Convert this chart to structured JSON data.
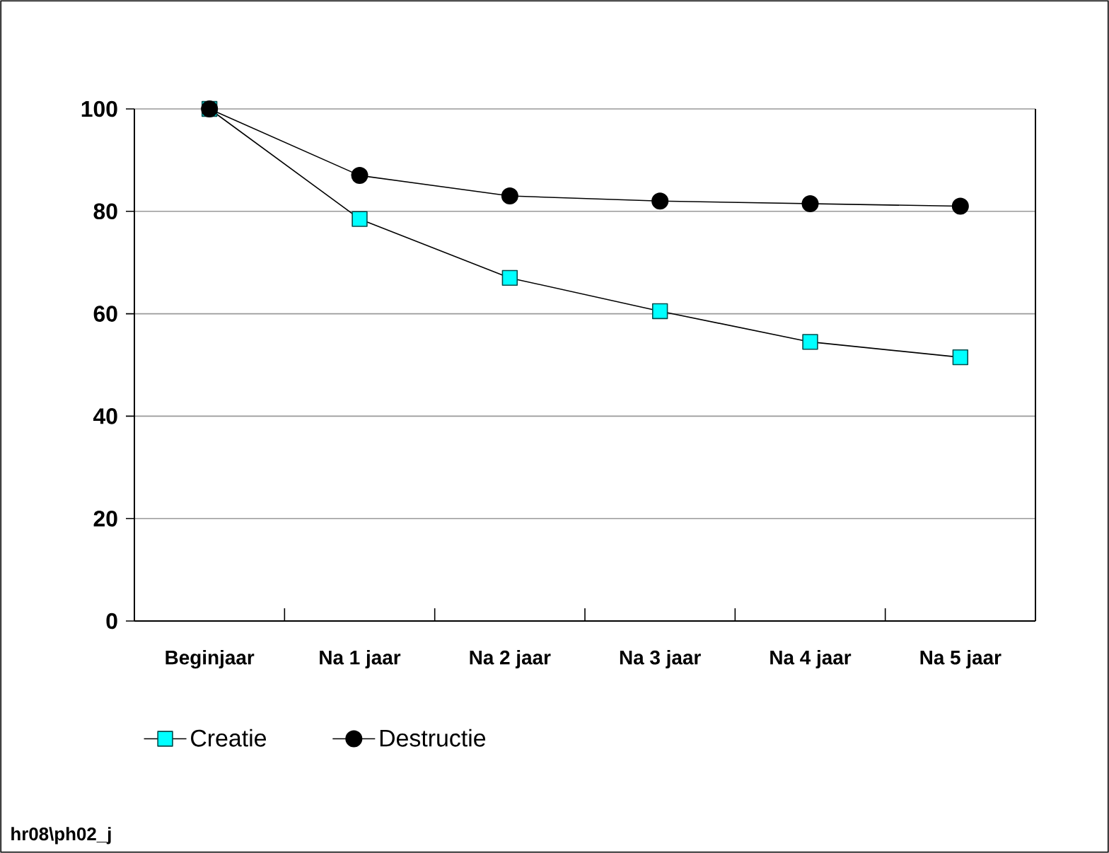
{
  "chart_data": {
    "type": "line",
    "categories": [
      "Beginjaar",
      "Na 1 jaar",
      "Na 2 jaar",
      "Na 3 jaar",
      "Na 4 jaar",
      "Na 5 jaar"
    ],
    "series": [
      {
        "name": "Creatie",
        "color": "#00ffff",
        "marker": "square",
        "values": [
          100,
          78.5,
          67,
          60.5,
          54.5,
          51.5
        ]
      },
      {
        "name": "Destructie",
        "color": "#000000",
        "marker": "circle",
        "values": [
          100,
          87,
          83,
          82,
          81.5,
          81
        ]
      }
    ],
    "ylim": [
      0,
      100
    ],
    "yticks": [
      0,
      20,
      40,
      60,
      80,
      100
    ],
    "grid": "y",
    "legend": "bottom left",
    "line_style": "solid",
    "annotations": [
      "hr08\\ph02_j"
    ]
  }
}
